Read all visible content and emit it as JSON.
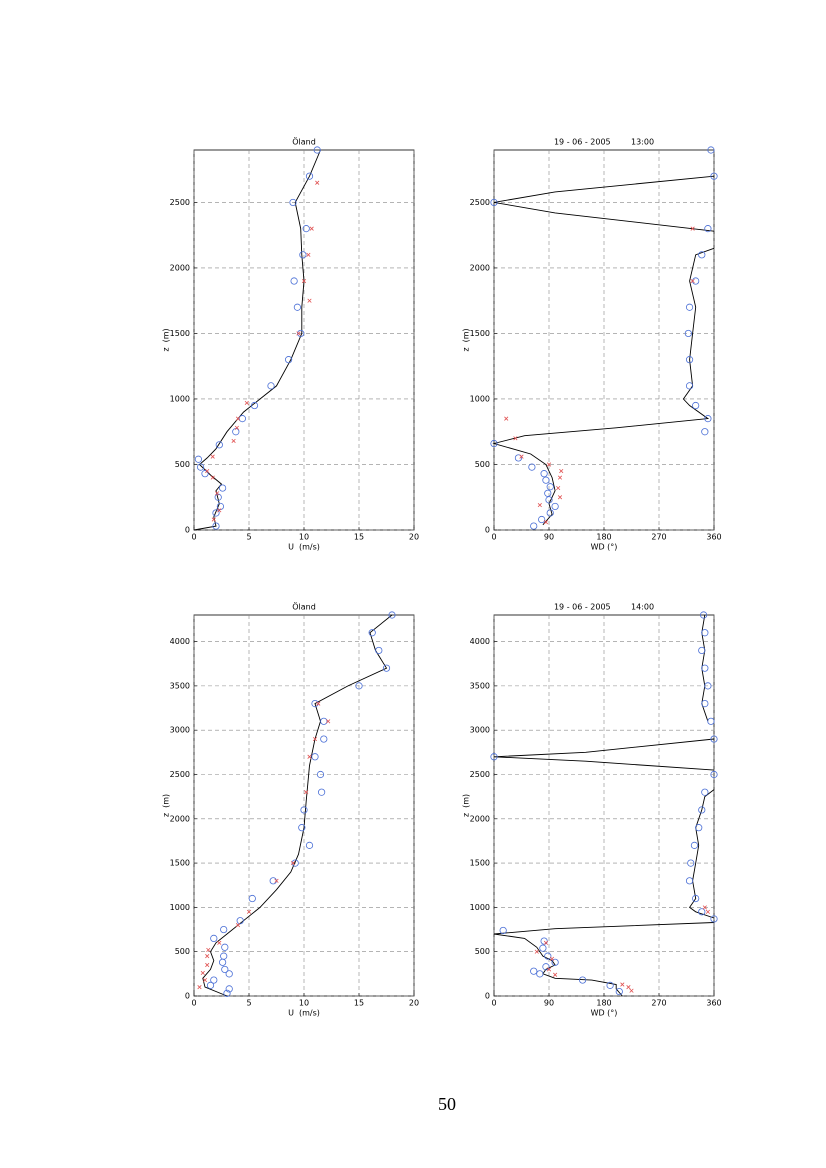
{
  "chart_data": [
    {
      "type": "scatter",
      "title": "Öland",
      "xlabel": "U  (m/s)",
      "ylabel": "z  (m)",
      "xlim": [
        0,
        20
      ],
      "xticks": [
        0,
        5,
        10,
        15,
        20
      ],
      "ylim": [
        0,
        2900
      ],
      "yticks": [
        0,
        500,
        1000,
        1500,
        2000,
        2500
      ],
      "grid": true,
      "series": [
        {
          "marker": "line",
          "color": "#000000",
          "x": [
            0,
            2,
            1.8,
            2.3,
            2,
            2.5,
            1.5,
            0.5,
            1.2,
            2,
            3,
            4.5,
            6,
            7.5,
            8.8,
            9.8,
            9.8,
            10,
            9.8,
            9.7,
            9.2,
            10.5,
            11.5
          ],
          "y": [
            0,
            30,
            100,
            200,
            300,
            350,
            420,
            500,
            550,
            620,
            750,
            900,
            1000,
            1100,
            1300,
            1500,
            1700,
            1900,
            2100,
            2300,
            2500,
            2700,
            2900
          ]
        },
        {
          "marker": "o",
          "color": "#4a6fd6",
          "x": [
            2,
            2,
            2.4,
            2.2,
            2.6,
            1,
            0.6,
            0.4,
            2.3,
            3.8,
            4.4,
            5.5,
            7,
            8.6,
            9.7,
            9.4,
            9.1,
            9.9,
            10.2,
            9,
            10.5,
            11.2
          ],
          "y": [
            30,
            130,
            180,
            250,
            320,
            430,
            480,
            540,
            650,
            750,
            850,
            950,
            1100,
            1300,
            1500,
            1700,
            1900,
            2100,
            2300,
            2500,
            2700,
            2900
          ]
        },
        {
          "marker": "x",
          "color": "#e05050",
          "x": [
            1.8,
            2.3,
            2.1,
            1.7,
            1.2,
            1.7,
            3.6,
            3.9,
            4,
            4.8,
            9.5,
            10.5,
            10,
            10.4,
            10.7,
            11.2
          ],
          "y": [
            80,
            150,
            280,
            400,
            450,
            560,
            680,
            780,
            850,
            970,
            1500,
            1750,
            1900,
            2100,
            2300,
            2650
          ]
        }
      ]
    },
    {
      "type": "scatter",
      "title": "19 - 06 - 2005        13:00",
      "xlabel": "WD (°)",
      "ylabel": "z  (m)",
      "xlim": [
        0,
        360
      ],
      "xticks": [
        0,
        90,
        180,
        270,
        360
      ],
      "ylim": [
        0,
        2900
      ],
      "yticks": [
        0,
        500,
        1000,
        1500,
        2000,
        2500
      ],
      "grid": true,
      "series": [
        {
          "marker": "line",
          "color": "#000000",
          "x": [
            80,
            95,
            90,
            100,
            95,
            85,
            60,
            0,
            50,
            200,
            350,
            320,
            310,
            325,
            320,
            325,
            330,
            320,
            330,
            360,
            null,
            360,
            100,
            0,
            100,
            360
          ],
          "y": [
            40,
            120,
            200,
            300,
            400,
            500,
            580,
            660,
            720,
            780,
            850,
            950,
            1000,
            1100,
            1300,
            1500,
            1700,
            1900,
            2100,
            2150,
            null,
            2280,
            2420,
            2500,
            2580,
            2700
          ]
        },
        {
          "marker": "o",
          "color": "#4a6fd6",
          "x": [
            65,
            78,
            92,
            100,
            90,
            88,
            92,
            85,
            82,
            62,
            40,
            0,
            345,
            350,
            330,
            320,
            320,
            318,
            320,
            330,
            340,
            350,
            0,
            360,
            355
          ],
          "y": [
            30,
            80,
            130,
            180,
            230,
            280,
            330,
            380,
            430,
            480,
            550,
            660,
            750,
            850,
            950,
            1100,
            1300,
            1500,
            1700,
            1900,
            2100,
            2300,
            2500,
            2700,
            2900
          ]
        },
        {
          "marker": "x",
          "color": "#e05050",
          "x": [
            85,
            75,
            108,
            105,
            108,
            110,
            90,
            45,
            35,
            20,
            325,
            325
          ],
          "y": [
            60,
            190,
            250,
            320,
            400,
            450,
            500,
            560,
            700,
            850,
            1900,
            2300
          ]
        }
      ]
    },
    {
      "type": "scatter",
      "title": "Öland",
      "xlabel": "U  (m/s)",
      "ylabel": "z  (m)",
      "xlim": [
        0,
        20
      ],
      "xticks": [
        0,
        5,
        10,
        15,
        20
      ],
      "ylim": [
        0,
        4300
      ],
      "yticks": [
        0,
        500,
        1000,
        1500,
        2000,
        2500,
        3000,
        3500,
        4000
      ],
      "grid": true,
      "series": [
        {
          "marker": "line",
          "color": "#000000",
          "x": [
            3,
            1,
            0.8,
            1.5,
            1.8,
            1.5,
            2,
            3,
            4.5,
            6,
            7.5,
            8.8,
            9.5,
            10,
            10.2,
            10.5,
            11,
            11.5,
            11,
            14,
            17.5,
            16.5,
            16,
            18
          ],
          "y": [
            0,
            100,
            200,
            300,
            400,
            500,
            600,
            700,
            850,
            1000,
            1200,
            1400,
            1600,
            1900,
            2200,
            2600,
            2900,
            3100,
            3300,
            3500,
            3700,
            3900,
            4100,
            4300
          ]
        },
        {
          "marker": "o",
          "color": "#4a6fd6",
          "x": [
            3,
            3.2,
            1.5,
            1.8,
            3.2,
            2.8,
            2.6,
            2.7,
            2.8,
            1.8,
            2.7,
            4.2,
            5.3,
            7.2,
            9.2,
            10.5,
            9.8,
            10,
            11.6,
            11.5,
            11,
            11.8,
            11.8,
            11,
            15,
            17.5,
            16.8,
            16.2,
            18
          ],
          "y": [
            30,
            80,
            120,
            180,
            250,
            300,
            380,
            450,
            550,
            650,
            750,
            850,
            1100,
            1300,
            1500,
            1700,
            1900,
            2100,
            2300,
            2500,
            2700,
            2900,
            3100,
            3300,
            3500,
            3700,
            3900,
            4100,
            4300
          ]
        },
        {
          "marker": "x",
          "color": "#e05050",
          "x": [
            0.5,
            1,
            0.8,
            1.2,
            1.2,
            1.3,
            2.3,
            4,
            5,
            7.5,
            9,
            10.2,
            10.5,
            11,
            12.2,
            11.3
          ],
          "y": [
            100,
            180,
            260,
            350,
            450,
            520,
            600,
            800,
            950,
            1300,
            1500,
            2300,
            2700,
            2900,
            3100,
            3300
          ]
        }
      ]
    },
    {
      "type": "scatter",
      "title": "19 - 06 - 2005        14:00",
      "xlabel": "WD (°)",
      "ylabel": "z  (m)",
      "xlim": [
        0,
        360
      ],
      "xticks": [
        0,
        90,
        180,
        270,
        360
      ],
      "ylim": [
        0,
        4300
      ],
      "yticks": [
        0,
        500,
        1000,
        1500,
        2000,
        2500,
        3000,
        3500,
        4000
      ],
      "grid": true,
      "series": [
        {
          "marker": "line",
          "color": "#000000",
          "x": [
            210,
            200,
            200,
            160,
            100,
            80,
            85,
            100,
            95,
            80,
            70,
            50,
            0,
            100,
            360,
            null,
            360,
            330,
            320,
            330,
            325,
            330,
            335,
            330,
            340,
            345,
            360,
            null,
            360,
            150,
            0,
            150,
            360,
            null,
            350,
            340,
            345,
            340,
            345,
            340,
            345
          ],
          "y": [
            0,
            80,
            130,
            180,
            200,
            250,
            300,
            350,
            400,
            450,
            550,
            650,
            700,
            760,
            830,
            null,
            880,
            950,
            1000,
            1100,
            1300,
            1500,
            1700,
            1900,
            2100,
            2250,
            2330,
            null,
            2550,
            2650,
            2700,
            2750,
            2900,
            null,
            3100,
            3300,
            3500,
            3700,
            3900,
            4100,
            4300
          ]
        },
        {
          "marker": "o",
          "color": "#4a6fd6",
          "x": [
            205,
            190,
            145,
            75,
            65,
            85,
            100,
            88,
            80,
            82,
            15,
            360,
            340,
            330,
            320,
            322,
            328,
            335,
            340,
            345,
            360,
            0,
            360,
            355,
            345,
            350,
            345,
            340,
            345,
            343
          ],
          "y": [
            50,
            120,
            180,
            250,
            280,
            330,
            380,
            450,
            540,
            620,
            740,
            870,
            950,
            1100,
            1300,
            1500,
            1700,
            1900,
            2100,
            2300,
            2500,
            2700,
            2900,
            3100,
            3300,
            3500,
            3700,
            3900,
            4100,
            4300
          ]
        },
        {
          "marker": "x",
          "color": "#e05050",
          "x": [
            225,
            220,
            210,
            100,
            90,
            95,
            70,
            85,
            350,
            345
          ],
          "y": [
            60,
            100,
            130,
            240,
            300,
            420,
            500,
            600,
            950,
            1000
          ]
        }
      ]
    }
  ],
  "page_number": "50"
}
